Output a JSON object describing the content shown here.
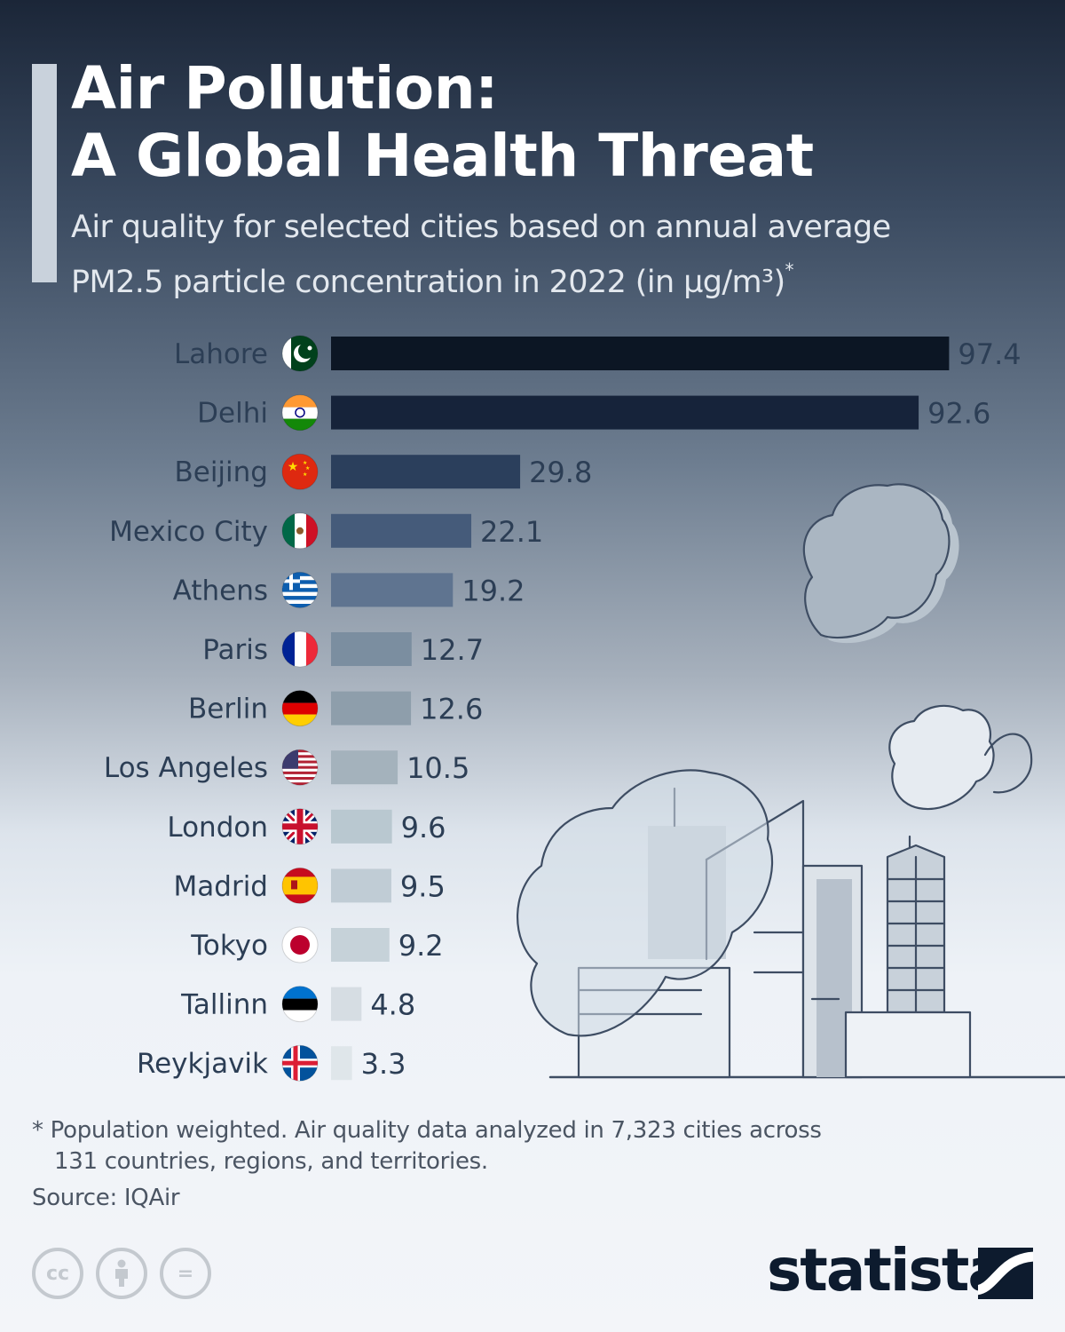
{
  "title_line1": "Air Pollution:",
  "title_line2": "A Global Health Threat",
  "subtitle_line1": "Air quality for selected cities based on annual average",
  "subtitle_line2": "PM2.5 particle concentration in 2022 (in µg/m³)",
  "subtitle_mark": "*",
  "chart_data": {
    "type": "bar",
    "orientation": "horizontal",
    "title": "Air quality for selected cities based on annual average PM2.5 particle concentration in 2022 (in µg/m³)",
    "xlabel": "",
    "ylabel": "",
    "grid": false,
    "xlim": [
      0,
      100
    ],
    "categories": [
      "Lahore",
      "Delhi",
      "Beijing",
      "Mexico City",
      "Athens",
      "Paris",
      "Berlin",
      "Los Angeles",
      "London",
      "Madrid",
      "Tokyo",
      "Tallinn",
      "Reykjavik"
    ],
    "values": [
      97.4,
      92.6,
      29.8,
      22.1,
      19.2,
      12.7,
      12.6,
      10.5,
      9.6,
      9.5,
      9.2,
      4.8,
      3.3
    ],
    "value_labels": [
      "97.4",
      "92.6",
      "29.8",
      "22.1",
      "19.2",
      "12.7",
      "12.6",
      "10.5",
      "9.6",
      "9.5",
      "9.2",
      "4.8",
      "3.3"
    ],
    "flags": [
      "pakistan-flag",
      "india-flag",
      "china-flag",
      "mexico-flag",
      "greece-flag",
      "france-flag",
      "germany-flag",
      "usa-flag",
      "uk-flag",
      "spain-flag",
      "japan-flag",
      "estonia-flag",
      "iceland-flag"
    ],
    "bar_colors": [
      "#0c1624",
      "#16233a",
      "#2b3f5c",
      "#455b7a",
      "#5f7490",
      "#7b8ea0",
      "#8e9eab",
      "#a4b2bc",
      "#b9c8d0",
      "#c0ccd5",
      "#c6d2d9",
      "#d6dde3",
      "#dfe6ea"
    ],
    "label_color": "#2c3e55",
    "value_color": "#2c3e55"
  },
  "footnote_line1": "* Population weighted. Air quality data analyzed in 7,323 cities across",
  "footnote_line2": "131 countries, regions, and territories.",
  "source": "Source: IQAir",
  "license_icons": [
    "cc-icon",
    "attribution-icon",
    "no-derivatives-icon"
  ],
  "license_cc": "cc",
  "license_eq": "=",
  "brand": "statista"
}
